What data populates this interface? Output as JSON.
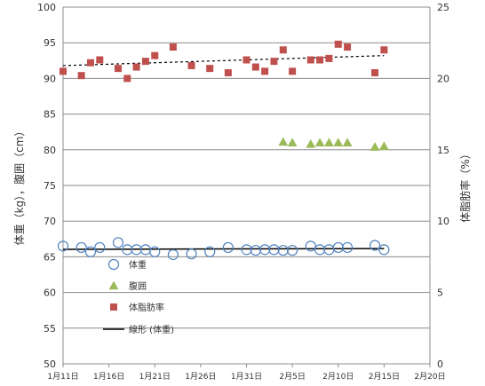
{
  "chart_data": {
    "type": "scatter",
    "title": "",
    "ylabel_left": "体重（kg），腹囲（cm）",
    "ylabel_right": "体脂肪率（%）",
    "ylim_left": [
      50,
      100
    ],
    "yticks_left": [
      50,
      55,
      60,
      65,
      70,
      75,
      80,
      85,
      90,
      95,
      100
    ],
    "ylim_right": [
      0,
      25
    ],
    "yticks_right": [
      0,
      5,
      10,
      15,
      20,
      25
    ],
    "xlim": [
      "2024-01-11",
      "2024-02-20"
    ],
    "xticks": [
      {
        "date": "2024-01-11",
        "label": "1月11日"
      },
      {
        "date": "2024-01-16",
        "label": "1月16日"
      },
      {
        "date": "2024-01-21",
        "label": "1月21日"
      },
      {
        "date": "2024-01-26",
        "label": "1月26日"
      },
      {
        "date": "2024-01-31",
        "label": "1月31日"
      },
      {
        "date": "2024-02-05",
        "label": "2月5日"
      },
      {
        "date": "2024-02-10",
        "label": "2月10日"
      },
      {
        "date": "2024-02-15",
        "label": "2月15日"
      },
      {
        "date": "2024-02-20",
        "label": "2月20日"
      }
    ],
    "grid": "horizontal",
    "legend_position": "inside-bottom-left",
    "series": [
      {
        "name": "体重",
        "axis": "left",
        "marker": "open-circle",
        "color": "#4F81BD",
        "points": [
          [
            "2024-01-11",
            66.5
          ],
          [
            "2024-01-13",
            66.3
          ],
          [
            "2024-01-14",
            65.7
          ],
          [
            "2024-01-15",
            66.3
          ],
          [
            "2024-01-17",
            67.0
          ],
          [
            "2024-01-18",
            66.0
          ],
          [
            "2024-01-19",
            66.0
          ],
          [
            "2024-01-20",
            66.0
          ],
          [
            "2024-01-21",
            65.7
          ],
          [
            "2024-01-23",
            65.3
          ],
          [
            "2024-01-25",
            65.4
          ],
          [
            "2024-01-27",
            65.7
          ],
          [
            "2024-01-29",
            66.3
          ],
          [
            "2024-01-31",
            66.0
          ],
          [
            "2024-02-01",
            65.9
          ],
          [
            "2024-02-02",
            66.0
          ],
          [
            "2024-02-03",
            66.0
          ],
          [
            "2024-02-04",
            65.9
          ],
          [
            "2024-02-05",
            65.9
          ],
          [
            "2024-02-07",
            66.5
          ],
          [
            "2024-02-08",
            66.0
          ],
          [
            "2024-02-09",
            66.0
          ],
          [
            "2024-02-10",
            66.3
          ],
          [
            "2024-02-11",
            66.3
          ],
          [
            "2024-02-14",
            66.6
          ],
          [
            "2024-02-15",
            66.0
          ]
        ]
      },
      {
        "name": "腹囲",
        "axis": "left",
        "marker": "triangle",
        "color": "#9BBB59",
        "points": [
          [
            "2024-02-04",
            81.1
          ],
          [
            "2024-02-05",
            81.0
          ],
          [
            "2024-02-07",
            80.8
          ],
          [
            "2024-02-08",
            81.0
          ],
          [
            "2024-02-09",
            81.0
          ],
          [
            "2024-02-10",
            81.0
          ],
          [
            "2024-02-11",
            81.0
          ],
          [
            "2024-02-14",
            80.4
          ],
          [
            "2024-02-15",
            80.5
          ]
        ]
      },
      {
        "name": "体脂肪率",
        "axis": "right",
        "marker": "square",
        "color": "#C0504D",
        "points": [
          [
            "2024-01-11",
            20.5
          ],
          [
            "2024-01-13",
            20.2
          ],
          [
            "2024-01-14",
            21.1
          ],
          [
            "2024-01-15",
            21.3
          ],
          [
            "2024-01-17",
            20.7
          ],
          [
            "2024-01-18",
            20.0
          ],
          [
            "2024-01-19",
            20.8
          ],
          [
            "2024-01-20",
            21.2
          ],
          [
            "2024-01-21",
            21.6
          ],
          [
            "2024-01-23",
            22.2
          ],
          [
            "2024-01-25",
            20.9
          ],
          [
            "2024-01-27",
            20.7
          ],
          [
            "2024-01-29",
            20.4
          ],
          [
            "2024-01-31",
            21.3
          ],
          [
            "2024-02-01",
            20.8
          ],
          [
            "2024-02-02",
            20.5
          ],
          [
            "2024-02-03",
            21.2
          ],
          [
            "2024-02-04",
            22.0
          ],
          [
            "2024-02-05",
            20.5
          ],
          [
            "2024-02-07",
            21.3
          ],
          [
            "2024-02-08",
            21.3
          ],
          [
            "2024-02-09",
            21.4
          ],
          [
            "2024-02-10",
            22.4
          ],
          [
            "2024-02-11",
            22.2
          ],
          [
            "2024-02-14",
            20.4
          ],
          [
            "2024-02-15",
            22.0
          ]
        ]
      }
    ],
    "trendlines": [
      {
        "name": "線形 (体重)",
        "axis": "left",
        "style": "solid",
        "color": "#000000",
        "from": [
          "2024-01-11",
          66.05
        ],
        "to": [
          "2024-02-15",
          66.15
        ],
        "legend": true
      },
      {
        "name": "",
        "axis": "right",
        "style": "dashed",
        "color": "#000000",
        "from": [
          "2024-01-11",
          20.9
        ],
        "to": [
          "2024-02-15",
          21.6
        ],
        "legend": false
      }
    ]
  }
}
